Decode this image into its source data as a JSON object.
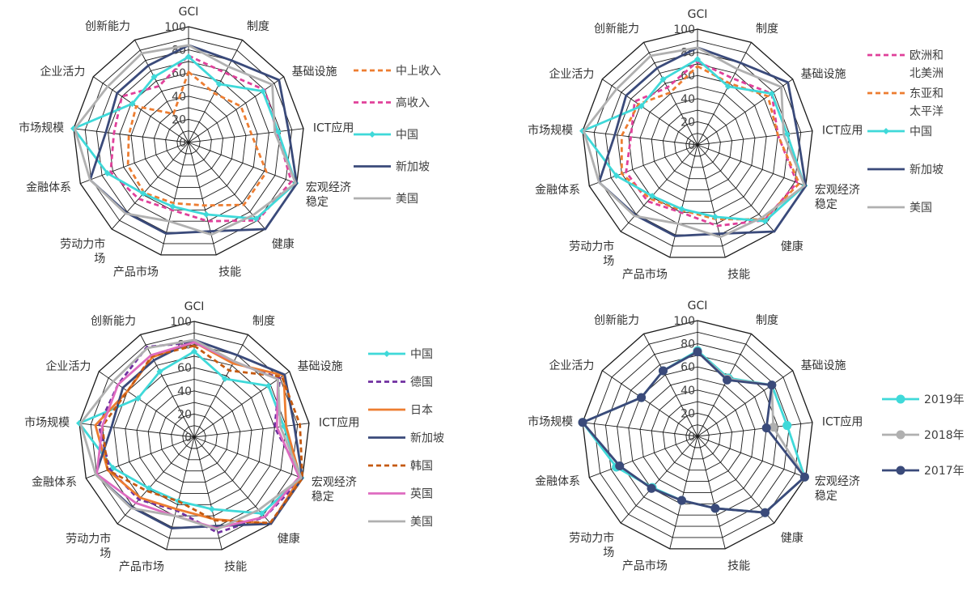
{
  "chart_data": [
    {
      "type": "radar",
      "axes": [
        "GCI",
        "制度",
        "基础设施",
        "ICT应用",
        "宏观经济稳定",
        "健康",
        "技能",
        "产品市场",
        "劳动力市场",
        "金融体系",
        "市场规模",
        "企业活力",
        "创新能力"
      ],
      "axis_display": [
        "GCI",
        "制度",
        "基础设施",
        "ICT应用",
        "宏观经济\n稳定",
        "健康",
        "技能",
        "产品市场",
        "劳动力市\n场",
        "金融体系",
        "市场规模",
        "企业活力",
        "创新能力"
      ],
      "r_ticks": [
        "0",
        "20",
        "40",
        "60",
        "80",
        "100"
      ],
      "rlim": [
        0,
        100
      ],
      "series": [
        {
          "name": "中上收入",
          "color": "#ED7D31",
          "dash": "6,4",
          "marker": "none",
          "values": [
            61,
            48,
            55,
            55,
            72,
            72,
            56,
            54,
            58,
            56,
            52,
            55,
            28
          ]
        },
        {
          "name": "高收入",
          "color": "#E0409A",
          "dash": "6,4",
          "marker": "none",
          "values": [
            75,
            68,
            80,
            77,
            95,
            90,
            70,
            60,
            65,
            72,
            65,
            70,
            55
          ]
        },
        {
          "name": "中国",
          "color": "#3FD9D9",
          "dash": "",
          "marker": "diamond",
          "values": [
            74,
            57,
            78,
            78,
            99,
            88,
            64,
            57,
            59,
            75,
            100,
            59,
            64
          ]
        },
        {
          "name": "新加坡",
          "color": "#3A4A7A",
          "dash": "",
          "marker": "none",
          "values": [
            84,
            80,
            95,
            87,
            100,
            100,
            79,
            81,
            81,
            91,
            72,
            75,
            75
          ]
        },
        {
          "name": "美国",
          "color": "#B0B0B0",
          "dash": "",
          "marker": "none",
          "values": [
            84,
            74,
            88,
            75,
            99,
            84,
            82,
            70,
            82,
            91,
            99,
            85,
            87
          ]
        }
      ]
    },
    {
      "type": "radar",
      "axes": [
        "GCI",
        "制度",
        "基础设施",
        "ICT应用",
        "宏观经济稳定",
        "健康",
        "技能",
        "产品市场",
        "劳动力市场",
        "金融体系",
        "市场规模",
        "企业活力",
        "创新能力"
      ],
      "axis_display": [
        "GCI",
        "制度",
        "基础设施",
        "ICT应用",
        "宏观经济\n稳定",
        "健康",
        "技能",
        "产品市场",
        "劳动力市\n场",
        "金融体系",
        "市场规模",
        "企业活力",
        "创新能力"
      ],
      "r_ticks": [
        "0",
        "20",
        "40",
        "60",
        "80",
        "100"
      ],
      "rlim": [
        0,
        100
      ],
      "series": [
        {
          "name": "欧洲和北美洲",
          "legend_lines": [
            "欧洲和",
            "北美洲"
          ],
          "color": "#E0409A",
          "dash": "6,4",
          "marker": "none",
          "values": [
            72,
            65,
            78,
            70,
            92,
            87,
            72,
            60,
            65,
            66,
            58,
            66,
            56
          ]
        },
        {
          "name": "东亚和太平洋",
          "legend_lines": [
            "东亚和",
            "太平洋"
          ],
          "color": "#ED7D31",
          "dash": "6,4",
          "marker": "none",
          "values": [
            68,
            60,
            74,
            70,
            94,
            86,
            66,
            58,
            62,
            70,
            66,
            62,
            51
          ]
        },
        {
          "name": "中国",
          "legend_lines": [
            "中国"
          ],
          "color": "#3FD9D9",
          "dash": "",
          "marker": "diamond",
          "values": [
            74,
            57,
            78,
            78,
            99,
            88,
            64,
            57,
            59,
            75,
            100,
            59,
            64
          ]
        },
        {
          "name": "新加坡",
          "legend_lines": [
            "新加坡"
          ],
          "color": "#3A4A7A",
          "dash": "",
          "marker": "none",
          "values": [
            84,
            80,
            95,
            87,
            100,
            100,
            79,
            81,
            81,
            91,
            72,
            75,
            75
          ]
        },
        {
          "name": "美国",
          "legend_lines": [
            "美国"
          ],
          "color": "#B0B0B0",
          "dash": "",
          "marker": "none",
          "values": [
            84,
            74,
            88,
            75,
            99,
            84,
            82,
            70,
            82,
            91,
            99,
            85,
            87
          ]
        }
      ]
    },
    {
      "type": "radar",
      "axes": [
        "GCI",
        "制度",
        "基础设施",
        "ICT应用",
        "宏观经济稳定",
        "健康",
        "技能",
        "产品市场",
        "劳动力市场",
        "金融体系",
        "市场规模",
        "企业活力",
        "创新能力"
      ],
      "axis_display": [
        "GCI",
        "制度",
        "基础设施",
        "ICT应用",
        "宏观经济\n稳定",
        "健康",
        "技能",
        "产品市场",
        "劳动力市\n场",
        "金融体系",
        "市场规模",
        "企业活力",
        "创新能力"
      ],
      "r_ticks": [
        "0",
        "20",
        "40",
        "60",
        "80",
        "100"
      ],
      "rlim": [
        0,
        100
      ],
      "series": [
        {
          "name": "中国",
          "color": "#3FD9D9",
          "dash": "",
          "marker": "diamond",
          "values": [
            74,
            57,
            78,
            78,
            99,
            88,
            64,
            57,
            59,
            75,
            100,
            59,
            64
          ]
        },
        {
          "name": "德国",
          "color": "#7030A0",
          "dash": "6,4",
          "marker": "none",
          "values": [
            82,
            73,
            90,
            70,
            100,
            92,
            85,
            65,
            72,
            78,
            83,
            80,
            88
          ]
        },
        {
          "name": "日本",
          "color": "#ED7D31",
          "dash": "",
          "marker": "none",
          "values": [
            82,
            72,
            94,
            80,
            98,
            100,
            73,
            64,
            70,
            80,
            86,
            70,
            78
          ]
        },
        {
          "name": "新加坡",
          "color": "#3A4A7A",
          "dash": "",
          "marker": "none",
          "values": [
            84,
            80,
            95,
            87,
            100,
            100,
            79,
            81,
            81,
            91,
            72,
            75,
            75
          ]
        },
        {
          "name": "韩国",
          "color": "#C55A11",
          "dash": "6,4",
          "marker": "none",
          "values": [
            79,
            65,
            92,
            92,
            100,
            99,
            74,
            57,
            62,
            80,
            80,
            70,
            79
          ]
        },
        {
          "name": "英国",
          "color": "#DE6BC0",
          "dash": "",
          "marker": "none",
          "values": [
            82,
            74,
            88,
            72,
            97,
            92,
            81,
            70,
            76,
            90,
            80,
            80,
            80
          ]
        },
        {
          "name": "美国",
          "color": "#B0B0B0",
          "dash": "",
          "marker": "none",
          "values": [
            84,
            74,
            88,
            75,
            99,
            84,
            82,
            70,
            82,
            91,
            99,
            85,
            87
          ]
        }
      ]
    },
    {
      "type": "radar",
      "axes": [
        "GCI",
        "制度",
        "基础设施",
        "ICT应用",
        "宏观经济稳定",
        "健康",
        "技能",
        "产品市场",
        "劳动力市场",
        "金融体系",
        "市场规模",
        "企业活力",
        "创新能力"
      ],
      "axis_display": [
        "GCI",
        "制度",
        "基础设施",
        "ICT应用",
        "宏观经济\n稳定",
        "健康",
        "技能",
        "产品市场",
        "劳动力市\n场",
        "金融体系",
        "市场规模",
        "企业活力",
        "创新能力"
      ],
      "r_ticks": [
        "0",
        "20",
        "40",
        "60",
        "80",
        "100"
      ],
      "rlim": [
        0,
        100
      ],
      "series": [
        {
          "name": "2019年",
          "color": "#3FD9D9",
          "dash": "",
          "marker": "circle",
          "values": [
            74,
            57,
            78,
            78,
            99,
            88,
            64,
            57,
            59,
            75,
            100,
            59,
            64
          ]
        },
        {
          "name": "2018年",
          "color": "#B0B0B0",
          "dash": "",
          "marker": "circle",
          "values": [
            73,
            56,
            78,
            66,
            99,
            88,
            64,
            57,
            60,
            72,
            100,
            59,
            64
          ]
        },
        {
          "name": "2017年",
          "color": "#3A4A7A",
          "dash": "",
          "marker": "circle",
          "values": [
            73,
            55,
            78,
            60,
            99,
            88,
            64,
            57,
            60,
            72,
            100,
            59,
            64
          ]
        }
      ]
    }
  ]
}
